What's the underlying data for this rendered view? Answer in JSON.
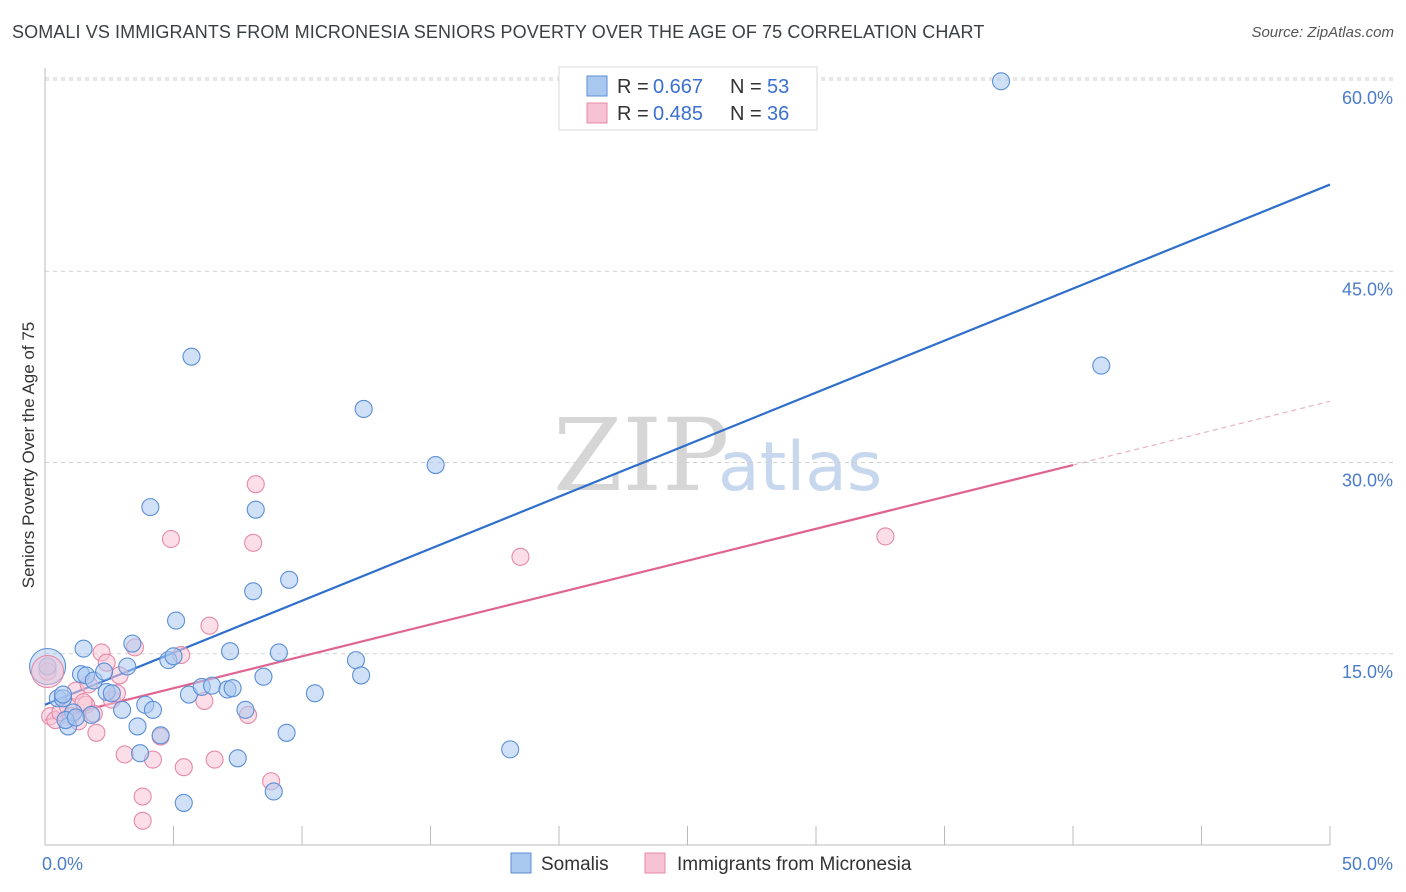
{
  "title": "SOMALI VS IMMIGRANTS FROM MICRONESIA SENIORS POVERTY OVER THE AGE OF 75 CORRELATION CHART",
  "source": "Source: ZipAtlas.com",
  "chart_data": {
    "type": "scatter",
    "ylabel": "Seniors Poverty Over the Age of 75",
    "xlim": [
      0,
      50
    ],
    "ylim": [
      0,
      60
    ],
    "x_tick_labels": [
      "0.0%",
      "50.0%"
    ],
    "y_ticks": [
      15,
      30,
      45,
      60
    ],
    "y_tick_labels": [
      "15.0%",
      "30.0%",
      "45.0%",
      "60.0%"
    ],
    "grid": "horizontal dashed",
    "legend": [
      {
        "r_label": "R =",
        "r_value": "0.667",
        "n_label": "N =",
        "n_value": "53"
      },
      {
        "r_label": "R =",
        "r_value": "0.485",
        "n_label": "N =",
        "n_value": "36"
      }
    ],
    "legend_placement": "top-center",
    "watermark": {
      "zip": "ZIP",
      "atlas": "atlas"
    },
    "series": [
      {
        "name": "Somalis",
        "color": "#a9c8f0",
        "stroke": "#5b8fd6",
        "line_color": "#2f6fcc",
        "trend": {
          "x0": 0,
          "y0": 11.0,
          "x1": 50,
          "y1": 51.8
        },
        "points": [
          [
            0.1,
            14.0
          ],
          [
            0.5,
            11.5
          ],
          [
            0.7,
            11.5
          ],
          [
            0.7,
            11.8
          ],
          [
            0.9,
            9.3
          ],
          [
            1.1,
            10.4
          ],
          [
            1.4,
            13.4
          ],
          [
            1.5,
            15.4
          ],
          [
            1.6,
            13.3
          ],
          [
            1.8,
            10.2
          ],
          [
            1.9,
            12.9
          ],
          [
            2.3,
            13.6
          ],
          [
            2.4,
            12.0
          ],
          [
            2.6,
            11.9
          ],
          [
            3.0,
            10.6
          ],
          [
            3.2,
            14.0
          ],
          [
            3.4,
            15.8
          ],
          [
            3.6,
            9.3
          ],
          [
            3.9,
            11.0
          ],
          [
            4.1,
            26.5
          ],
          [
            4.2,
            10.6
          ],
          [
            4.5,
            8.6
          ],
          [
            4.8,
            14.5
          ],
          [
            5.0,
            14.8
          ],
          [
            5.1,
            17.6
          ],
          [
            5.4,
            3.3
          ],
          [
            5.6,
            11.8
          ],
          [
            5.7,
            38.3
          ],
          [
            6.1,
            12.4
          ],
          [
            6.5,
            12.5
          ],
          [
            7.1,
            12.2
          ],
          [
            7.3,
            12.3
          ],
          [
            7.2,
            15.2
          ],
          [
            7.5,
            6.8
          ],
          [
            7.8,
            10.6
          ],
          [
            8.1,
            19.9
          ],
          [
            8.2,
            26.3
          ],
          [
            8.5,
            13.2
          ],
          [
            8.9,
            4.2
          ],
          [
            9.1,
            15.1
          ],
          [
            9.4,
            8.8
          ],
          [
            9.5,
            20.8
          ],
          [
            10.5,
            11.9
          ],
          [
            12.1,
            14.5
          ],
          [
            12.3,
            13.3
          ],
          [
            12.4,
            34.2
          ],
          [
            15.2,
            29.8
          ],
          [
            18.1,
            7.5
          ],
          [
            37.2,
            59.9
          ],
          [
            41.1,
            37.6
          ],
          [
            0.8,
            9.8
          ],
          [
            1.2,
            10.0
          ],
          [
            3.7,
            7.2
          ]
        ]
      },
      {
        "name": "Immigrants from Micronesia",
        "color": "#f7c2d3",
        "stroke": "#e58aa9",
        "line_color": "#e06492",
        "trend": {
          "x0": 0,
          "y0": 9.8,
          "x1": 40,
          "y1": 29.8
        },
        "trend_ext": {
          "x0": 40,
          "y0": 29.8,
          "x1": 50,
          "y1": 34.8
        },
        "points": [
          [
            0.2,
            10.1
          ],
          [
            0.4,
            9.8
          ],
          [
            0.6,
            10.4
          ],
          [
            0.9,
            10.8
          ],
          [
            1.0,
            10.1
          ],
          [
            1.2,
            12.1
          ],
          [
            1.3,
            9.7
          ],
          [
            1.6,
            11.0
          ],
          [
            1.7,
            12.6
          ],
          [
            2.0,
            8.8
          ],
          [
            2.2,
            15.1
          ],
          [
            2.4,
            14.3
          ],
          [
            2.6,
            11.4
          ],
          [
            2.9,
            13.3
          ],
          [
            3.1,
            7.1
          ],
          [
            3.5,
            15.5
          ],
          [
            3.8,
            3.8
          ],
          [
            3.8,
            1.9
          ],
          [
            4.2,
            6.7
          ],
          [
            4.5,
            8.5
          ],
          [
            4.9,
            24.0
          ],
          [
            5.3,
            14.9
          ],
          [
            5.4,
            6.1
          ],
          [
            6.2,
            11.3
          ],
          [
            6.4,
            17.2
          ],
          [
            6.6,
            6.7
          ],
          [
            7.9,
            10.2
          ],
          [
            8.1,
            23.7
          ],
          [
            8.2,
            28.3
          ],
          [
            8.8,
            5.0
          ],
          [
            18.5,
            22.6
          ],
          [
            32.7,
            24.2
          ],
          [
            0.1,
            13.6
          ],
          [
            1.9,
            10.3
          ],
          [
            2.8,
            11.9
          ],
          [
            1.5,
            11.2
          ]
        ]
      }
    ]
  }
}
